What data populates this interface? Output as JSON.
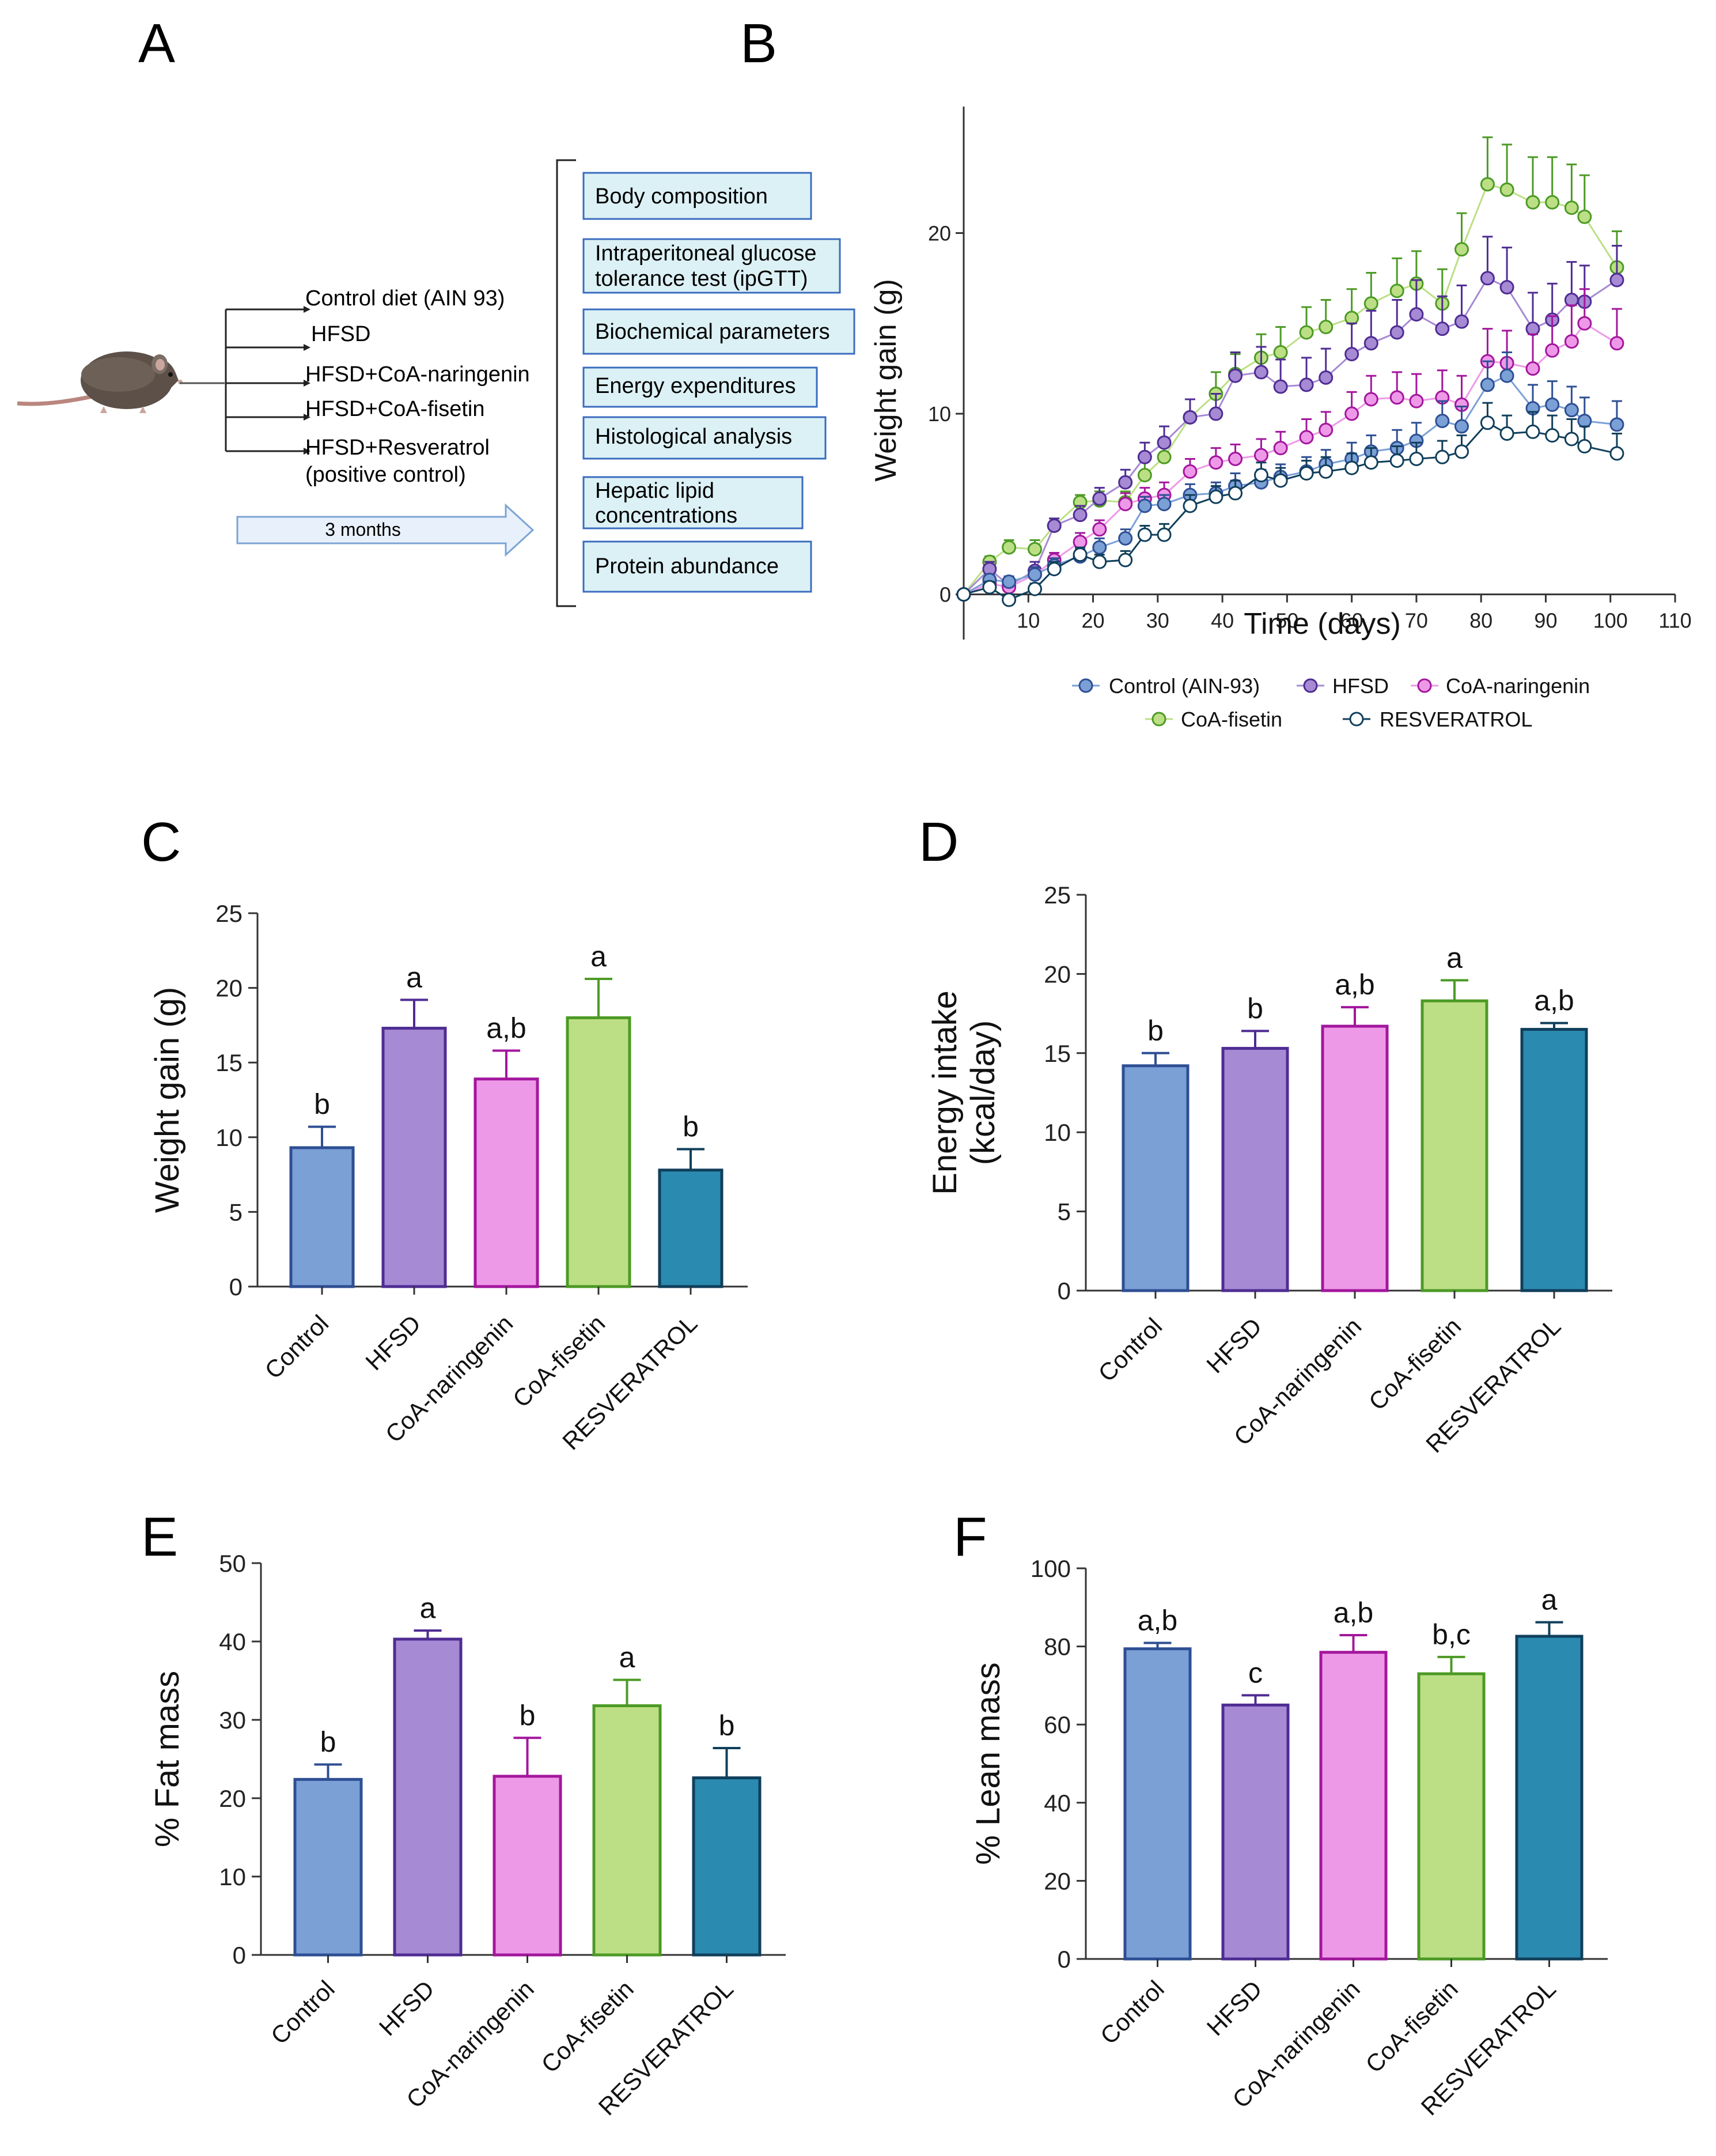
{
  "panel_letters": [
    "A",
    "B",
    "C",
    "D",
    "E",
    "F"
  ],
  "colors": {
    "control_fill": "#7ba0d6",
    "control_edge": "#2e4f94",
    "hfsd_fill": "#a68ad4",
    "hfsd_edge": "#4f2c93",
    "nar_fill": "#ee99e8",
    "nar_edge": "#a3169d",
    "fis_fill": "#bcdf85",
    "fis_edge": "#4c9a25",
    "res_fill": "#2b8ab0",
    "res_edge": "#103f5b",
    "box_fill": "#dcf1f5",
    "box_edge": "#3b6cbf",
    "arrow_fill": "#e8f1fb",
    "arrow_edge": "#7ca4d5"
  },
  "panel_a": {
    "diet_groups": [
      "Control diet (AIN 93)",
      "HFSD",
      "HFSD+CoA-naringenin",
      "HFSD+CoA-fisetin",
      "HFSD+Resveratrol",
      "(positive control)"
    ],
    "duration": "3 months",
    "outcomes": [
      "Body composition",
      "Intraperitoneal glucose",
      "tolerance test (ipGTT)",
      "Biochemical parameters",
      "Energy expenditures",
      "Histological analysis",
      "Hepatic lipid",
      "concentrations",
      "Protein abundance"
    ]
  },
  "chart_data": [
    {
      "panel": "B",
      "type": "line",
      "xlabel": "Time (days)",
      "ylabel": "Weight gain (g)",
      "xlim": [
        0,
        110
      ],
      "ylim": [
        -2.5,
        27
      ],
      "xticks": [
        10,
        20,
        30,
        40,
        50,
        60,
        70,
        80,
        90,
        100,
        110
      ],
      "yticks": [
        0,
        10,
        20
      ],
      "legend": [
        "Control (AIN-93)",
        "HFSD",
        "CoA-naringenin",
        "CoA-fisetin",
        "RESVERATROL"
      ],
      "series": [
        {
          "name": "CoA-fisetin",
          "key": "fis",
          "open": false,
          "x": [
            0,
            4,
            7,
            11,
            14,
            18,
            21,
            25,
            28,
            31,
            35,
            39,
            42,
            46,
            49,
            53,
            56,
            60,
            63,
            67,
            70,
            74,
            77,
            81,
            84,
            88,
            91,
            94,
            96,
            101
          ],
          "y": [
            0,
            1.8,
            2.6,
            2.5,
            3.8,
            5.1,
            5.2,
            5.1,
            6.6,
            7.6,
            9.8,
            11.1,
            12.2,
            13.1,
            13.4,
            14.5,
            14.8,
            15.3,
            16.1,
            16.8,
            17.2,
            16.1,
            19.1,
            22.7,
            22.4,
            21.7,
            21.7,
            21.4,
            20.9,
            18.1
          ],
          "err": [
            0,
            0.3,
            0.4,
            0.5,
            0.4,
            0.4,
            0.5,
            0.6,
            0.8,
            0.9,
            1.0,
            1.2,
            1.1,
            1.3,
            1.4,
            1.4,
            1.5,
            1.6,
            1.7,
            1.8,
            1.8,
            1.9,
            2.0,
            2.6,
            2.5,
            2.5,
            2.5,
            2.4,
            2.3,
            2.0
          ]
        },
        {
          "name": "HFSD",
          "key": "hfsd",
          "open": false,
          "x": [
            0,
            4,
            7,
            11,
            14,
            18,
            21,
            25,
            28,
            31,
            35,
            39,
            42,
            46,
            49,
            53,
            56,
            60,
            63,
            67,
            70,
            74,
            77,
            81,
            84,
            88,
            91,
            94,
            96,
            101
          ],
          "y": [
            0,
            1.4,
            0.5,
            1.3,
            3.8,
            4.4,
            5.3,
            6.2,
            7.6,
            8.4,
            9.8,
            10,
            12.1,
            12.3,
            11.5,
            11.6,
            12,
            13.3,
            13.9,
            14.5,
            15.5,
            14.7,
            15.1,
            17.5,
            17,
            14.7,
            15.2,
            16.3,
            16.2,
            17.4
          ],
          "err": [
            0,
            0.4,
            0.3,
            0.5,
            0.4,
            0.5,
            0.6,
            0.7,
            0.8,
            0.9,
            1.0,
            1.1,
            1.3,
            1.4,
            1.5,
            1.5,
            1.6,
            1.7,
            1.8,
            1.8,
            1.9,
            1.8,
            2.0,
            2.3,
            2.2,
            2.0,
            2.0,
            2.1,
            2.0,
            1.9
          ]
        },
        {
          "name": "CoA-naringenin",
          "key": "nar",
          "open": false,
          "x": [
            0,
            4,
            7,
            11,
            14,
            18,
            21,
            25,
            28,
            31,
            35,
            39,
            42,
            46,
            49,
            53,
            56,
            60,
            63,
            67,
            70,
            74,
            77,
            81,
            84,
            88,
            91,
            94,
            96,
            101
          ],
          "y": [
            0,
            0.6,
            0.4,
            1.1,
            1.9,
            2.9,
            3.6,
            5,
            5.3,
            5.5,
            6.8,
            7.3,
            7.5,
            7.7,
            8.1,
            8.7,
            9.1,
            10,
            10.8,
            10.9,
            10.7,
            10.9,
            10.5,
            12.9,
            12.8,
            12.5,
            13.5,
            14,
            15,
            13.9
          ],
          "err": [
            0,
            0.3,
            0.3,
            0.4,
            0.4,
            0.5,
            0.5,
            0.6,
            0.6,
            0.7,
            0.7,
            0.8,
            0.8,
            0.9,
            0.9,
            1.0,
            1.0,
            1.2,
            1.3,
            1.4,
            1.5,
            1.5,
            1.6,
            1.8,
            1.8,
            1.9,
            1.9,
            2.0,
            1.9,
            1.9
          ]
        },
        {
          "name": "Control (AIN-93)",
          "key": "ctrl",
          "open": false,
          "x": [
            0,
            4,
            7,
            11,
            14,
            18,
            21,
            25,
            28,
            31,
            35,
            39,
            42,
            46,
            49,
            53,
            56,
            60,
            63,
            67,
            70,
            74,
            77,
            81,
            84,
            88,
            91,
            94,
            96,
            101
          ],
          "y": [
            0,
            0.8,
            0.7,
            1.1,
            1.6,
            2.1,
            2.6,
            3.1,
            4.9,
            5,
            5.5,
            5.6,
            6,
            6.2,
            6.5,
            6.8,
            7.2,
            7.5,
            7.9,
            8.1,
            8.5,
            9.6,
            9.3,
            11.6,
            12.1,
            10.3,
            10.5,
            10.2,
            9.6,
            9.4
          ],
          "err": [
            0,
            0.3,
            0.3,
            0.4,
            0.4,
            0.4,
            0.5,
            0.5,
            0.5,
            0.5,
            0.6,
            0.6,
            0.7,
            0.7,
            0.7,
            0.8,
            0.8,
            0.9,
            0.9,
            1.0,
            1.0,
            1.1,
            1.1,
            1.3,
            1.3,
            1.3,
            1.3,
            1.3,
            1.3,
            1.3
          ]
        },
        {
          "name": "RESVERATROL",
          "key": "res",
          "open": true,
          "x": [
            0,
            4,
            7,
            11,
            14,
            18,
            21,
            25,
            28,
            31,
            35,
            39,
            42,
            46,
            49,
            53,
            56,
            60,
            63,
            67,
            70,
            74,
            77,
            81,
            84,
            88,
            91,
            94,
            96,
            101
          ],
          "y": [
            0,
            0.4,
            -0.3,
            0.3,
            1.4,
            2.2,
            1.8,
            1.9,
            3.3,
            3.3,
            4.9,
            5.4,
            5.6,
            6.6,
            6.3,
            6.7,
            6.8,
            7,
            7.3,
            7.4,
            7.5,
            7.6,
            7.9,
            9.5,
            8.9,
            9,
            8.8,
            8.6,
            8.2,
            7.8
          ],
          "err": [
            0,
            0.3,
            0.3,
            0.3,
            0.4,
            0.4,
            0.4,
            0.5,
            0.5,
            0.6,
            0.6,
            0.6,
            0.7,
            0.7,
            0.7,
            0.7,
            0.8,
            0.8,
            0.8,
            0.8,
            0.9,
            0.9,
            0.9,
            1.1,
            1.0,
            1.1,
            1.1,
            1.1,
            1.1,
            1.1
          ]
        }
      ]
    },
    {
      "panel": "C",
      "type": "bar",
      "ylabel": "Weight gain (g)",
      "ylim": [
        0,
        25
      ],
      "yticks": [
        0,
        5,
        10,
        15,
        20,
        25
      ],
      "categories": [
        "Control",
        "HFSD",
        "CoA-naringenin",
        "CoA-fisetin",
        "RESVERATROL"
      ],
      "values": [
        9.3,
        17.3,
        13.9,
        18.0,
        7.8
      ],
      "errors": [
        1.4,
        1.9,
        1.9,
        2.6,
        1.4
      ],
      "letters": [
        "b",
        "a",
        "a,b",
        "a",
        "b"
      ]
    },
    {
      "panel": "D",
      "type": "bar",
      "ylabel": [
        "Energy intake",
        "(kcal/day)"
      ],
      "ylim": [
        0,
        25
      ],
      "yticks": [
        0,
        5,
        10,
        15,
        20,
        25
      ],
      "categories": [
        "Control",
        "HFSD",
        "CoA-naringenin",
        "CoA-fisetin",
        "RESVERATROL"
      ],
      "values": [
        14.2,
        15.3,
        16.7,
        18.3,
        16.5
      ],
      "errors": [
        0.8,
        1.1,
        1.2,
        1.3,
        0.4
      ],
      "letters": [
        "b",
        "b",
        "a,b",
        "a",
        "a,b"
      ]
    },
    {
      "panel": "E",
      "type": "bar",
      "ylabel": "% Fat mass",
      "ylim": [
        0,
        50
      ],
      "yticks": [
        0,
        10,
        20,
        30,
        40,
        50
      ],
      "categories": [
        "Control",
        "HFSD",
        "CoA-naringenin",
        "CoA-fisetin",
        "RESVERATROL"
      ],
      "values": [
        22.4,
        40.3,
        22.8,
        31.8,
        22.6
      ],
      "errors": [
        1.9,
        1.1,
        4.9,
        3.3,
        3.8
      ],
      "letters": [
        "b",
        "a",
        "b",
        "a",
        "b"
      ]
    },
    {
      "panel": "F",
      "type": "bar",
      "ylabel": "% Lean mass",
      "ylim": [
        0,
        100
      ],
      "yticks": [
        0,
        20,
        40,
        60,
        80,
        100
      ],
      "categories": [
        "Control",
        "HFSD",
        "CoA-naringenin",
        "CoA-fisetin",
        "RESVERATROL"
      ],
      "values": [
        79.4,
        65.0,
        78.5,
        73.0,
        82.6
      ],
      "errors": [
        1.5,
        2.5,
        4.4,
        4.3,
        3.6
      ],
      "letters": [
        "a,b",
        "c",
        "a,b",
        "b,c",
        "a"
      ]
    }
  ]
}
